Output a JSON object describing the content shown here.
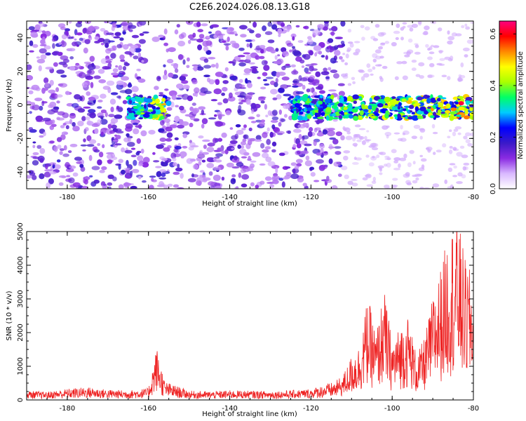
{
  "title": "C2E6.2024.026.08.13.G18",
  "chart_data": [
    {
      "type": "heatmap",
      "xlabel": "Height of straight line (km)",
      "ylabel": "Frequency (Hz)",
      "xlim": [
        -190,
        -80
      ],
      "ylim": [
        -50,
        50
      ],
      "x_ticks": [
        -180,
        -160,
        -140,
        -120,
        -100,
        -80
      ],
      "x_tick_labels": [
        "-180",
        "-160",
        "-140",
        "-120",
        "-100",
        "-80"
      ],
      "y_ticks": [
        -40,
        -20,
        0,
        20,
        40
      ],
      "y_tick_labels": [
        "-40",
        "-20",
        "0",
        "20",
        "40"
      ],
      "colorbar": {
        "label": "Normalized spectral amplitude",
        "range": [
          0,
          0.65
        ],
        "ticks": [
          0.0,
          0.2,
          0.4,
          0.6
        ],
        "tick_labels": [
          "0.0",
          "0.2",
          "0.4",
          "0.6"
        ],
        "colormap": [
          "#ffffff",
          "#d9b8ff",
          "#8a2be2",
          "#3a1ac8",
          "#0000ff",
          "#00ccff",
          "#00ff66",
          "#aaff00",
          "#ffff00",
          "#ff8800",
          "#ff0000",
          "#ff0080"
        ]
      },
      "features": [
        {
          "x_range": [
            -190,
            -112
          ],
          "y_range": [
            -50,
            50
          ],
          "level": 0.08,
          "description_level": "diffuse noise"
        },
        {
          "x_range": [
            -165,
            -155
          ],
          "y_range": [
            -8,
            5
          ],
          "level": 0.25
        },
        {
          "x_range": [
            -125,
            -80
          ],
          "y_range": [
            -8,
            5
          ],
          "level": 0.3
        },
        {
          "x": -83,
          "y": 1,
          "level": 0.62
        }
      ]
    },
    {
      "type": "line",
      "xlabel": "Height of straight line (km)",
      "ylabel": "SNR (10 * v/v)",
      "xlim": [
        -190,
        -80
      ],
      "ylim": [
        0,
        5000
      ],
      "x_ticks": [
        -180,
        -160,
        -140,
        -120,
        -100,
        -80
      ],
      "x_tick_labels": [
        "-180",
        "-160",
        "-140",
        "-120",
        "-100",
        "-80"
      ],
      "y_ticks": [
        0,
        1000,
        2000,
        3000,
        4000,
        5000
      ],
      "y_tick_labels": [
        "0",
        "1000",
        "2000",
        "3000",
        "4000",
        "5000"
      ],
      "series": [
        {
          "color": "#ee2222",
          "x": [
            -190,
            -185,
            -180,
            -175,
            -170,
            -165,
            -160,
            -158,
            -156,
            -150,
            -145,
            -140,
            -135,
            -130,
            -125,
            -120,
            -117,
            -114,
            -112,
            -110,
            -108,
            -106,
            -104,
            -102,
            -100,
            -98,
            -96,
            -94,
            -92,
            -90,
            -88,
            -86,
            -84,
            -82,
            -80
          ],
          "y": [
            250,
            220,
            300,
            350,
            280,
            260,
            320,
            1450,
            500,
            250,
            230,
            260,
            250,
            240,
            260,
            300,
            400,
            500,
            700,
            1200,
            1500,
            2800,
            1800,
            3000,
            1600,
            2000,
            2300,
            1200,
            1700,
            2800,
            3600,
            4600,
            5000,
            3800,
            3300
          ]
        }
      ]
    }
  ]
}
